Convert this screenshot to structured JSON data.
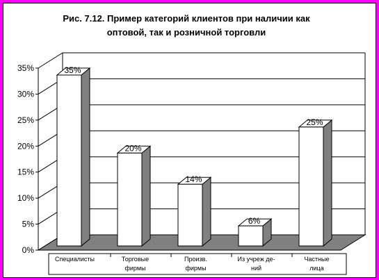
{
  "chart_data": {
    "type": "bar",
    "title": [
      "Рис. 7.12. Пример категорий клиентов при наличии как",
      "оптовой, так и розничной торговли"
    ],
    "categories": [
      [
        "Специалисты"
      ],
      [
        "Торговые",
        "фирмы"
      ],
      [
        "Произв.",
        "фирмы"
      ],
      [
        "Из учреж де-",
        "ний"
      ],
      [
        "Частные",
        "лица"
      ]
    ],
    "values": [
      35,
      20,
      14,
      6,
      25
    ],
    "data_labels": [
      "35%",
      "20%",
      "14%",
      "6%",
      "25%"
    ],
    "ylim": [
      0,
      35
    ],
    "yticks": [
      0,
      5,
      10,
      15,
      20,
      25,
      30,
      35
    ],
    "ytick_labels": [
      "0%",
      "5%",
      "10%",
      "15%",
      "20%",
      "25%",
      "30%",
      "35%"
    ],
    "grid": true,
    "style": "3d",
    "colors": {
      "page_border": "#ff00ff",
      "bar_front": "#ffffff",
      "bar_side": "#808080",
      "floor": "#808080",
      "grid": "#000000"
    }
  }
}
